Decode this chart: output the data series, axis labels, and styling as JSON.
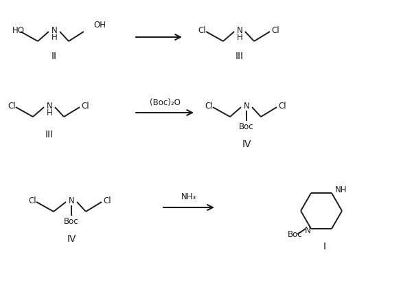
{
  "background_color": "#ffffff",
  "line_color": "#1a1a1a",
  "text_color": "#1a1a1a",
  "figsize": [
    6.0,
    4.12
  ],
  "dpi": 100,
  "step1_left_label": "II",
  "step1_right_label": "III",
  "step2_left_label": "III",
  "step2_reagent": "(Boc)₂O",
  "step2_right_label": "IV",
  "step3_left_label": "IV",
  "step3_reagent": "NH₃",
  "step3_right_label": "I"
}
